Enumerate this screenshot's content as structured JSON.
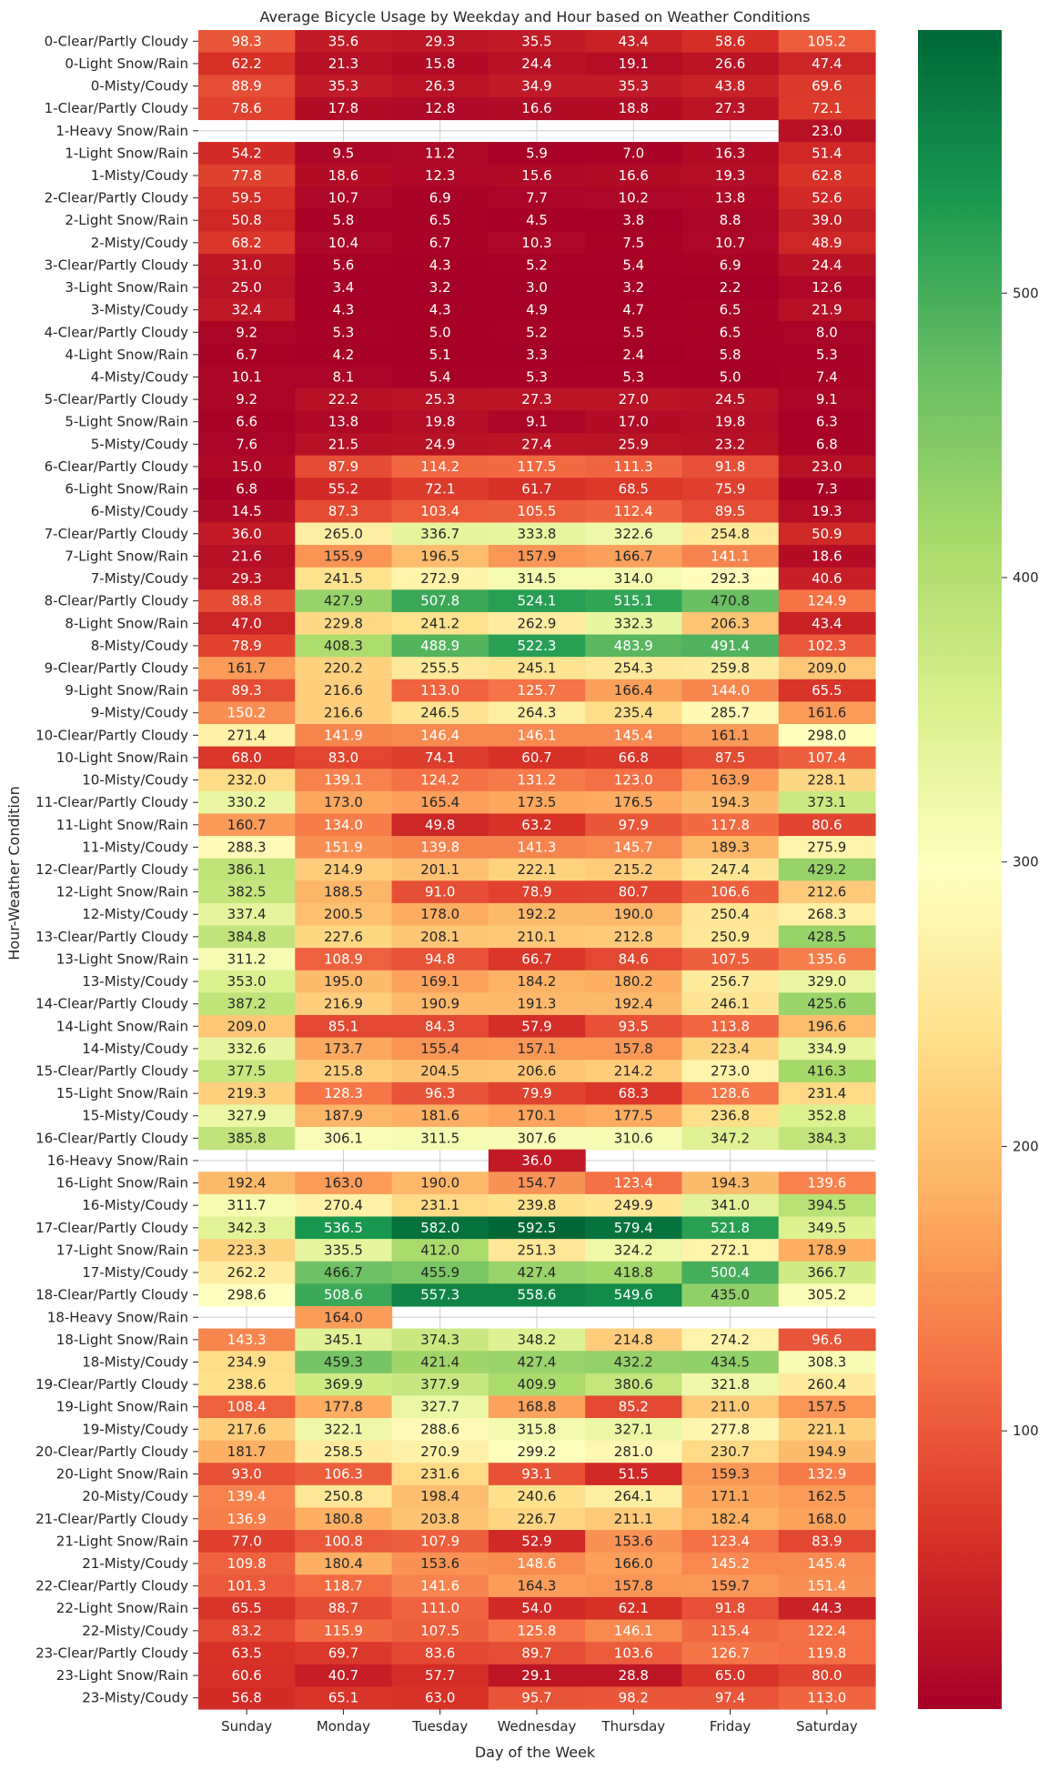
{
  "chart_data": {
    "type": "heatmap",
    "title": "Average Bicycle Usage by Weekday and Hour based on Weather Conditions",
    "xlabel": "Day of the Week",
    "ylabel": "Hour-Weather Condition",
    "x": [
      "Sunday",
      "Monday",
      "Tuesday",
      "Wednesday",
      "Thursday",
      "Friday",
      "Saturday"
    ],
    "y": [
      "0-Clear/Partly Cloudy",
      "0-Light Snow/Rain",
      "0-Misty/Coudy",
      "1-Clear/Partly Cloudy",
      "1-Heavy Snow/Rain",
      "1-Light Snow/Rain",
      "1-Misty/Coudy",
      "2-Clear/Partly Cloudy",
      "2-Light Snow/Rain",
      "2-Misty/Coudy",
      "3-Clear/Partly Cloudy",
      "3-Light Snow/Rain",
      "3-Misty/Coudy",
      "4-Clear/Partly Cloudy",
      "4-Light Snow/Rain",
      "4-Misty/Coudy",
      "5-Clear/Partly Cloudy",
      "5-Light Snow/Rain",
      "5-Misty/Coudy",
      "6-Clear/Partly Cloudy",
      "6-Light Snow/Rain",
      "6-Misty/Coudy",
      "7-Clear/Partly Cloudy",
      "7-Light Snow/Rain",
      "7-Misty/Coudy",
      "8-Clear/Partly Cloudy",
      "8-Light Snow/Rain",
      "8-Misty/Coudy",
      "9-Clear/Partly Cloudy",
      "9-Light Snow/Rain",
      "9-Misty/Coudy",
      "10-Clear/Partly Cloudy",
      "10-Light Snow/Rain",
      "10-Misty/Coudy",
      "11-Clear/Partly Cloudy",
      "11-Light Snow/Rain",
      "11-Misty/Coudy",
      "12-Clear/Partly Cloudy",
      "12-Light Snow/Rain",
      "12-Misty/Coudy",
      "13-Clear/Partly Cloudy",
      "13-Light Snow/Rain",
      "13-Misty/Coudy",
      "14-Clear/Partly Cloudy",
      "14-Light Snow/Rain",
      "14-Misty/Coudy",
      "15-Clear/Partly Cloudy",
      "15-Light Snow/Rain",
      "15-Misty/Coudy",
      "16-Clear/Partly Cloudy",
      "16-Heavy Snow/Rain",
      "16-Light Snow/Rain",
      "16-Misty/Coudy",
      "17-Clear/Partly Cloudy",
      "17-Light Snow/Rain",
      "17-Misty/Coudy",
      "18-Clear/Partly Cloudy",
      "18-Heavy Snow/Rain",
      "18-Light Snow/Rain",
      "18-Misty/Coudy",
      "19-Clear/Partly Cloudy",
      "19-Light Snow/Rain",
      "19-Misty/Coudy",
      "20-Clear/Partly Cloudy",
      "20-Light Snow/Rain",
      "20-Misty/Coudy",
      "21-Clear/Partly Cloudy",
      "21-Light Snow/Rain",
      "21-Misty/Coudy",
      "22-Clear/Partly Cloudy",
      "22-Light Snow/Rain",
      "22-Misty/Coudy",
      "23-Clear/Partly Cloudy",
      "23-Light Snow/Rain",
      "23-Misty/Coudy"
    ],
    "values": [
      [
        98.3,
        35.6,
        29.3,
        35.5,
        43.4,
        58.6,
        105.2
      ],
      [
        62.2,
        21.3,
        15.8,
        24.4,
        19.1,
        26.6,
        47.4
      ],
      [
        88.9,
        35.3,
        26.3,
        34.9,
        35.3,
        43.8,
        69.6
      ],
      [
        78.6,
        17.8,
        12.8,
        16.6,
        18.8,
        27.3,
        72.1
      ],
      [
        null,
        null,
        null,
        null,
        null,
        null,
        23.0
      ],
      [
        54.2,
        9.5,
        11.2,
        5.9,
        7.0,
        16.3,
        51.4
      ],
      [
        77.8,
        18.6,
        12.3,
        15.6,
        16.6,
        19.3,
        62.8
      ],
      [
        59.5,
        10.7,
        6.9,
        7.7,
        10.2,
        13.8,
        52.6
      ],
      [
        50.8,
        5.8,
        6.5,
        4.5,
        3.8,
        8.8,
        39.0
      ],
      [
        68.2,
        10.4,
        6.7,
        10.3,
        7.5,
        10.7,
        48.9
      ],
      [
        31.0,
        5.6,
        4.3,
        5.2,
        5.4,
        6.9,
        24.4
      ],
      [
        25.0,
        3.4,
        3.2,
        3.0,
        3.2,
        2.2,
        12.6
      ],
      [
        32.4,
        4.3,
        4.3,
        4.9,
        4.7,
        6.5,
        21.9
      ],
      [
        9.2,
        5.3,
        5.0,
        5.2,
        5.5,
        6.5,
        8.0
      ],
      [
        6.7,
        4.2,
        5.1,
        3.3,
        2.4,
        5.8,
        5.3
      ],
      [
        10.1,
        8.1,
        5.4,
        5.3,
        5.3,
        5.0,
        7.4
      ],
      [
        9.2,
        22.2,
        25.3,
        27.3,
        27.0,
        24.5,
        9.1
      ],
      [
        6.6,
        13.8,
        19.8,
        9.1,
        17.0,
        19.8,
        6.3
      ],
      [
        7.6,
        21.5,
        24.9,
        27.4,
        25.9,
        23.2,
        6.8
      ],
      [
        15.0,
        87.9,
        114.2,
        117.5,
        111.3,
        91.8,
        23.0
      ],
      [
        6.8,
        55.2,
        72.1,
        61.7,
        68.5,
        75.9,
        7.3
      ],
      [
        14.5,
        87.3,
        103.4,
        105.5,
        112.4,
        89.5,
        19.3
      ],
      [
        36.0,
        265.0,
        336.7,
        333.8,
        322.6,
        254.8,
        50.9
      ],
      [
        21.6,
        155.9,
        196.5,
        157.9,
        166.7,
        141.1,
        18.6
      ],
      [
        29.3,
        241.5,
        272.9,
        314.5,
        314.0,
        292.3,
        40.6
      ],
      [
        88.8,
        427.9,
        507.8,
        524.1,
        515.1,
        470.8,
        124.9
      ],
      [
        47.0,
        229.8,
        241.2,
        262.9,
        332.3,
        206.3,
        43.4
      ],
      [
        78.9,
        408.3,
        488.9,
        522.3,
        483.9,
        491.4,
        102.3
      ],
      [
        161.7,
        220.2,
        255.5,
        245.1,
        254.3,
        259.8,
        209.0
      ],
      [
        89.3,
        216.6,
        113.0,
        125.7,
        166.4,
        144.0,
        65.5
      ],
      [
        150.2,
        216.6,
        246.5,
        264.3,
        235.4,
        285.7,
        161.6
      ],
      [
        271.4,
        141.9,
        146.4,
        146.1,
        145.4,
        161.1,
        298.0
      ],
      [
        68.0,
        83.0,
        74.1,
        60.7,
        66.8,
        87.5,
        107.4
      ],
      [
        232.0,
        139.1,
        124.2,
        131.2,
        123.0,
        163.9,
        228.1
      ],
      [
        330.2,
        173.0,
        165.4,
        173.5,
        176.5,
        194.3,
        373.1
      ],
      [
        160.7,
        134.0,
        49.8,
        63.2,
        97.9,
        117.8,
        80.6
      ],
      [
        288.3,
        151.9,
        139.8,
        141.3,
        145.7,
        189.3,
        275.9
      ],
      [
        386.1,
        214.9,
        201.1,
        222.1,
        215.2,
        247.4,
        429.2
      ],
      [
        382.5,
        188.5,
        91.0,
        78.9,
        80.7,
        106.6,
        212.6
      ],
      [
        337.4,
        200.5,
        178.0,
        192.2,
        190.0,
        250.4,
        268.3
      ],
      [
        384.8,
        227.6,
        208.1,
        210.1,
        212.8,
        250.9,
        428.5
      ],
      [
        311.2,
        108.9,
        94.8,
        66.7,
        84.6,
        107.5,
        135.6
      ],
      [
        353.0,
        195.0,
        169.1,
        184.2,
        180.2,
        256.7,
        329.0
      ],
      [
        387.2,
        216.9,
        190.9,
        191.3,
        192.4,
        246.1,
        425.6
      ],
      [
        209.0,
        85.1,
        84.3,
        57.9,
        93.5,
        113.8,
        196.6
      ],
      [
        332.6,
        173.7,
        155.4,
        157.1,
        157.8,
        223.4,
        334.9
      ],
      [
        377.5,
        215.8,
        204.5,
        206.6,
        214.2,
        273.0,
        416.3
      ],
      [
        219.3,
        128.3,
        96.3,
        79.9,
        68.3,
        128.6,
        231.4
      ],
      [
        327.9,
        187.9,
        181.6,
        170.1,
        177.5,
        236.8,
        352.8
      ],
      [
        385.8,
        306.1,
        311.5,
        307.6,
        310.6,
        347.2,
        384.3
      ],
      [
        null,
        null,
        null,
        36.0,
        null,
        null,
        null
      ],
      [
        192.4,
        163.0,
        190.0,
        154.7,
        123.4,
        194.3,
        139.6
      ],
      [
        311.7,
        270.4,
        231.1,
        239.8,
        249.9,
        341.0,
        394.5
      ],
      [
        342.3,
        536.5,
        582.0,
        592.5,
        579.4,
        521.8,
        349.5
      ],
      [
        223.3,
        335.5,
        412.0,
        251.3,
        324.2,
        272.1,
        178.9
      ],
      [
        262.2,
        466.7,
        455.9,
        427.4,
        418.8,
        500.4,
        366.7
      ],
      [
        298.6,
        508.6,
        557.3,
        558.6,
        549.6,
        435.0,
        305.2
      ],
      [
        null,
        164.0,
        null,
        null,
        null,
        null,
        null
      ],
      [
        143.3,
        345.1,
        374.3,
        348.2,
        214.8,
        274.2,
        96.6
      ],
      [
        234.9,
        459.3,
        421.4,
        427.4,
        432.2,
        434.5,
        308.3
      ],
      [
        238.6,
        369.9,
        377.9,
        409.9,
        380.6,
        321.8,
        260.4
      ],
      [
        108.4,
        177.8,
        327.7,
        168.8,
        85.2,
        211.0,
        157.5
      ],
      [
        217.6,
        322.1,
        288.6,
        315.8,
        327.1,
        277.8,
        221.1
      ],
      [
        181.7,
        258.5,
        270.9,
        299.2,
        281.0,
        230.7,
        194.9
      ],
      [
        93.0,
        106.3,
        231.6,
        93.1,
        51.5,
        159.3,
        132.9
      ],
      [
        139.4,
        250.8,
        198.4,
        240.6,
        264.1,
        171.1,
        162.5
      ],
      [
        136.9,
        180.8,
        203.8,
        226.7,
        211.1,
        182.4,
        168.0
      ],
      [
        77.0,
        100.8,
        107.9,
        52.9,
        153.6,
        123.4,
        83.9
      ],
      [
        109.8,
        180.4,
        153.6,
        148.6,
        166.0,
        145.2,
        145.4
      ],
      [
        101.3,
        118.7,
        141.6,
        164.3,
        157.8,
        159.7,
        151.4
      ],
      [
        65.5,
        88.7,
        111.0,
        54.0,
        62.1,
        91.8,
        44.3
      ],
      [
        83.2,
        115.9,
        107.5,
        125.8,
        146.1,
        115.4,
        122.4
      ],
      [
        63.5,
        69.7,
        83.6,
        89.7,
        103.6,
        126.7,
        119.8
      ],
      [
        60.6,
        40.7,
        57.7,
        29.1,
        28.8,
        65.0,
        80.0
      ],
      [
        56.8,
        65.1,
        63.0,
        95.7,
        98.2,
        97.4,
        113.0
      ]
    ],
    "value_range": [
      2.2,
      592.5
    ],
    "colorbar_ticks": [
      100,
      200,
      300,
      400,
      500
    ],
    "colormap": "RdYlGn",
    "colormap_stops": [
      "#a50026",
      "#d73027",
      "#f46d43",
      "#fdae61",
      "#fee08b",
      "#ffffbf",
      "#d9ef8b",
      "#a6d96a",
      "#66bd63",
      "#1a9850",
      "#006837"
    ],
    "grid": true
  }
}
